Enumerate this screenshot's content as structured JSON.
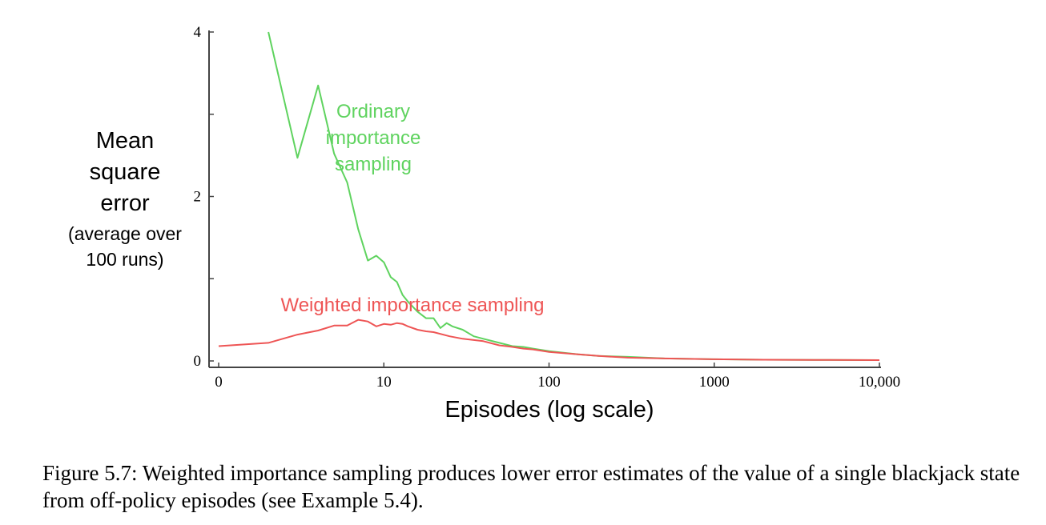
{
  "chart_data": {
    "type": "line",
    "xlabel": "Episodes (log scale)",
    "ylabel": [
      "Mean",
      "square",
      "error"
    ],
    "ylabel_sub": [
      "(average over",
      "100 runs)"
    ],
    "x_scale": "log",
    "xlim": [
      1,
      10000
    ],
    "ylim": [
      0,
      4
    ],
    "x_ticks": [
      {
        "value": 1,
        "label": "0"
      },
      {
        "value": 10,
        "label": "10"
      },
      {
        "value": 100,
        "label": "100"
      },
      {
        "value": 1000,
        "label": "1000"
      },
      {
        "value": 10000,
        "label": "10,000"
      }
    ],
    "y_ticks": [
      {
        "value": 0,
        "label": "0"
      },
      {
        "value": 1,
        "label": ""
      },
      {
        "value": 2,
        "label": "2"
      },
      {
        "value": 3,
        "label": ""
      },
      {
        "value": 4,
        "label": "4"
      }
    ],
    "grid": false,
    "series": [
      {
        "name": "Ordinary importance sampling",
        "label_lines": [
          "Ordinary",
          "importance",
          "sampling"
        ],
        "color": "#5fd35f",
        "x": [
          2,
          3,
          4,
          5,
          6,
          7,
          8,
          9,
          10,
          11,
          12,
          13,
          14,
          16,
          18,
          20,
          22,
          24,
          26,
          30,
          35,
          40,
          50,
          60,
          70,
          80,
          100,
          150,
          200,
          300,
          500,
          1000,
          2000,
          5000,
          10000
        ],
        "y": [
          4.0,
          2.47,
          3.35,
          2.52,
          2.17,
          1.6,
          1.22,
          1.28,
          1.2,
          1.02,
          0.96,
          0.8,
          0.72,
          0.6,
          0.52,
          0.52,
          0.4,
          0.46,
          0.42,
          0.38,
          0.3,
          0.27,
          0.22,
          0.18,
          0.17,
          0.15,
          0.12,
          0.08,
          0.06,
          0.05,
          0.03,
          0.02,
          0.015,
          0.012,
          0.01
        ]
      },
      {
        "name": "Weighted importance sampling",
        "label_lines": [
          "Weighted importance sampling"
        ],
        "color": "#ee5555",
        "x": [
          1,
          2,
          3,
          4,
          5,
          6,
          7,
          8,
          9,
          10,
          11,
          12,
          13,
          14,
          16,
          18,
          20,
          25,
          30,
          40,
          50,
          60,
          70,
          80,
          100,
          150,
          200,
          300,
          500,
          1000,
          2000,
          5000,
          10000
        ],
        "y": [
          0.18,
          0.22,
          0.32,
          0.37,
          0.43,
          0.43,
          0.5,
          0.48,
          0.42,
          0.45,
          0.44,
          0.46,
          0.45,
          0.42,
          0.38,
          0.36,
          0.35,
          0.3,
          0.27,
          0.24,
          0.19,
          0.17,
          0.15,
          0.14,
          0.11,
          0.08,
          0.06,
          0.04,
          0.03,
          0.02,
          0.015,
          0.012,
          0.01
        ]
      }
    ]
  },
  "caption": "Figure 5.7: Weighted importance sampling produces lower error estimates of the value of a single blackjack state from off-policy episodes (see Example 5.4)."
}
